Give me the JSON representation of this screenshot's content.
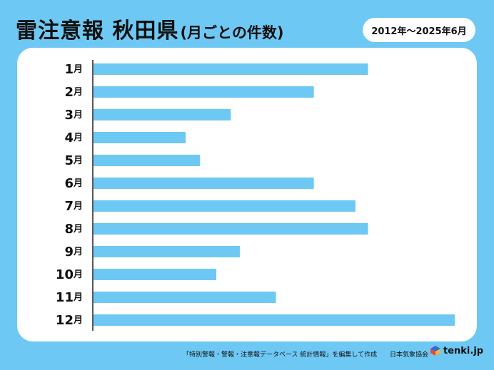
{
  "title": "雷注意報 秋田県",
  "subtitle": "(月ごとの件数)",
  "period": "2012年～2025年6月",
  "footer": {
    "source": "「特別警報・警報・注意報データベース 統計情報」を編集して作成",
    "agency": "日本気象協会",
    "logo_text": "tenki.jp"
  },
  "colors": {
    "background": "#6ec8f4",
    "bar": "#6ec8f4",
    "panel": "#ffffff"
  },
  "chart_data": {
    "type": "bar",
    "orientation": "horizontal",
    "categories": [
      "1月",
      "2月",
      "3月",
      "4月",
      "5月",
      "6月",
      "7月",
      "8月",
      "9月",
      "10月",
      "11月",
      "12月"
    ],
    "values": [
      152,
      122,
      76,
      51,
      59,
      122,
      145,
      152,
      81,
      68,
      101,
      200
    ],
    "xlim": [
      0,
      200
    ],
    "grid": false,
    "legend": "none",
    "value_axis_labels": "none"
  }
}
